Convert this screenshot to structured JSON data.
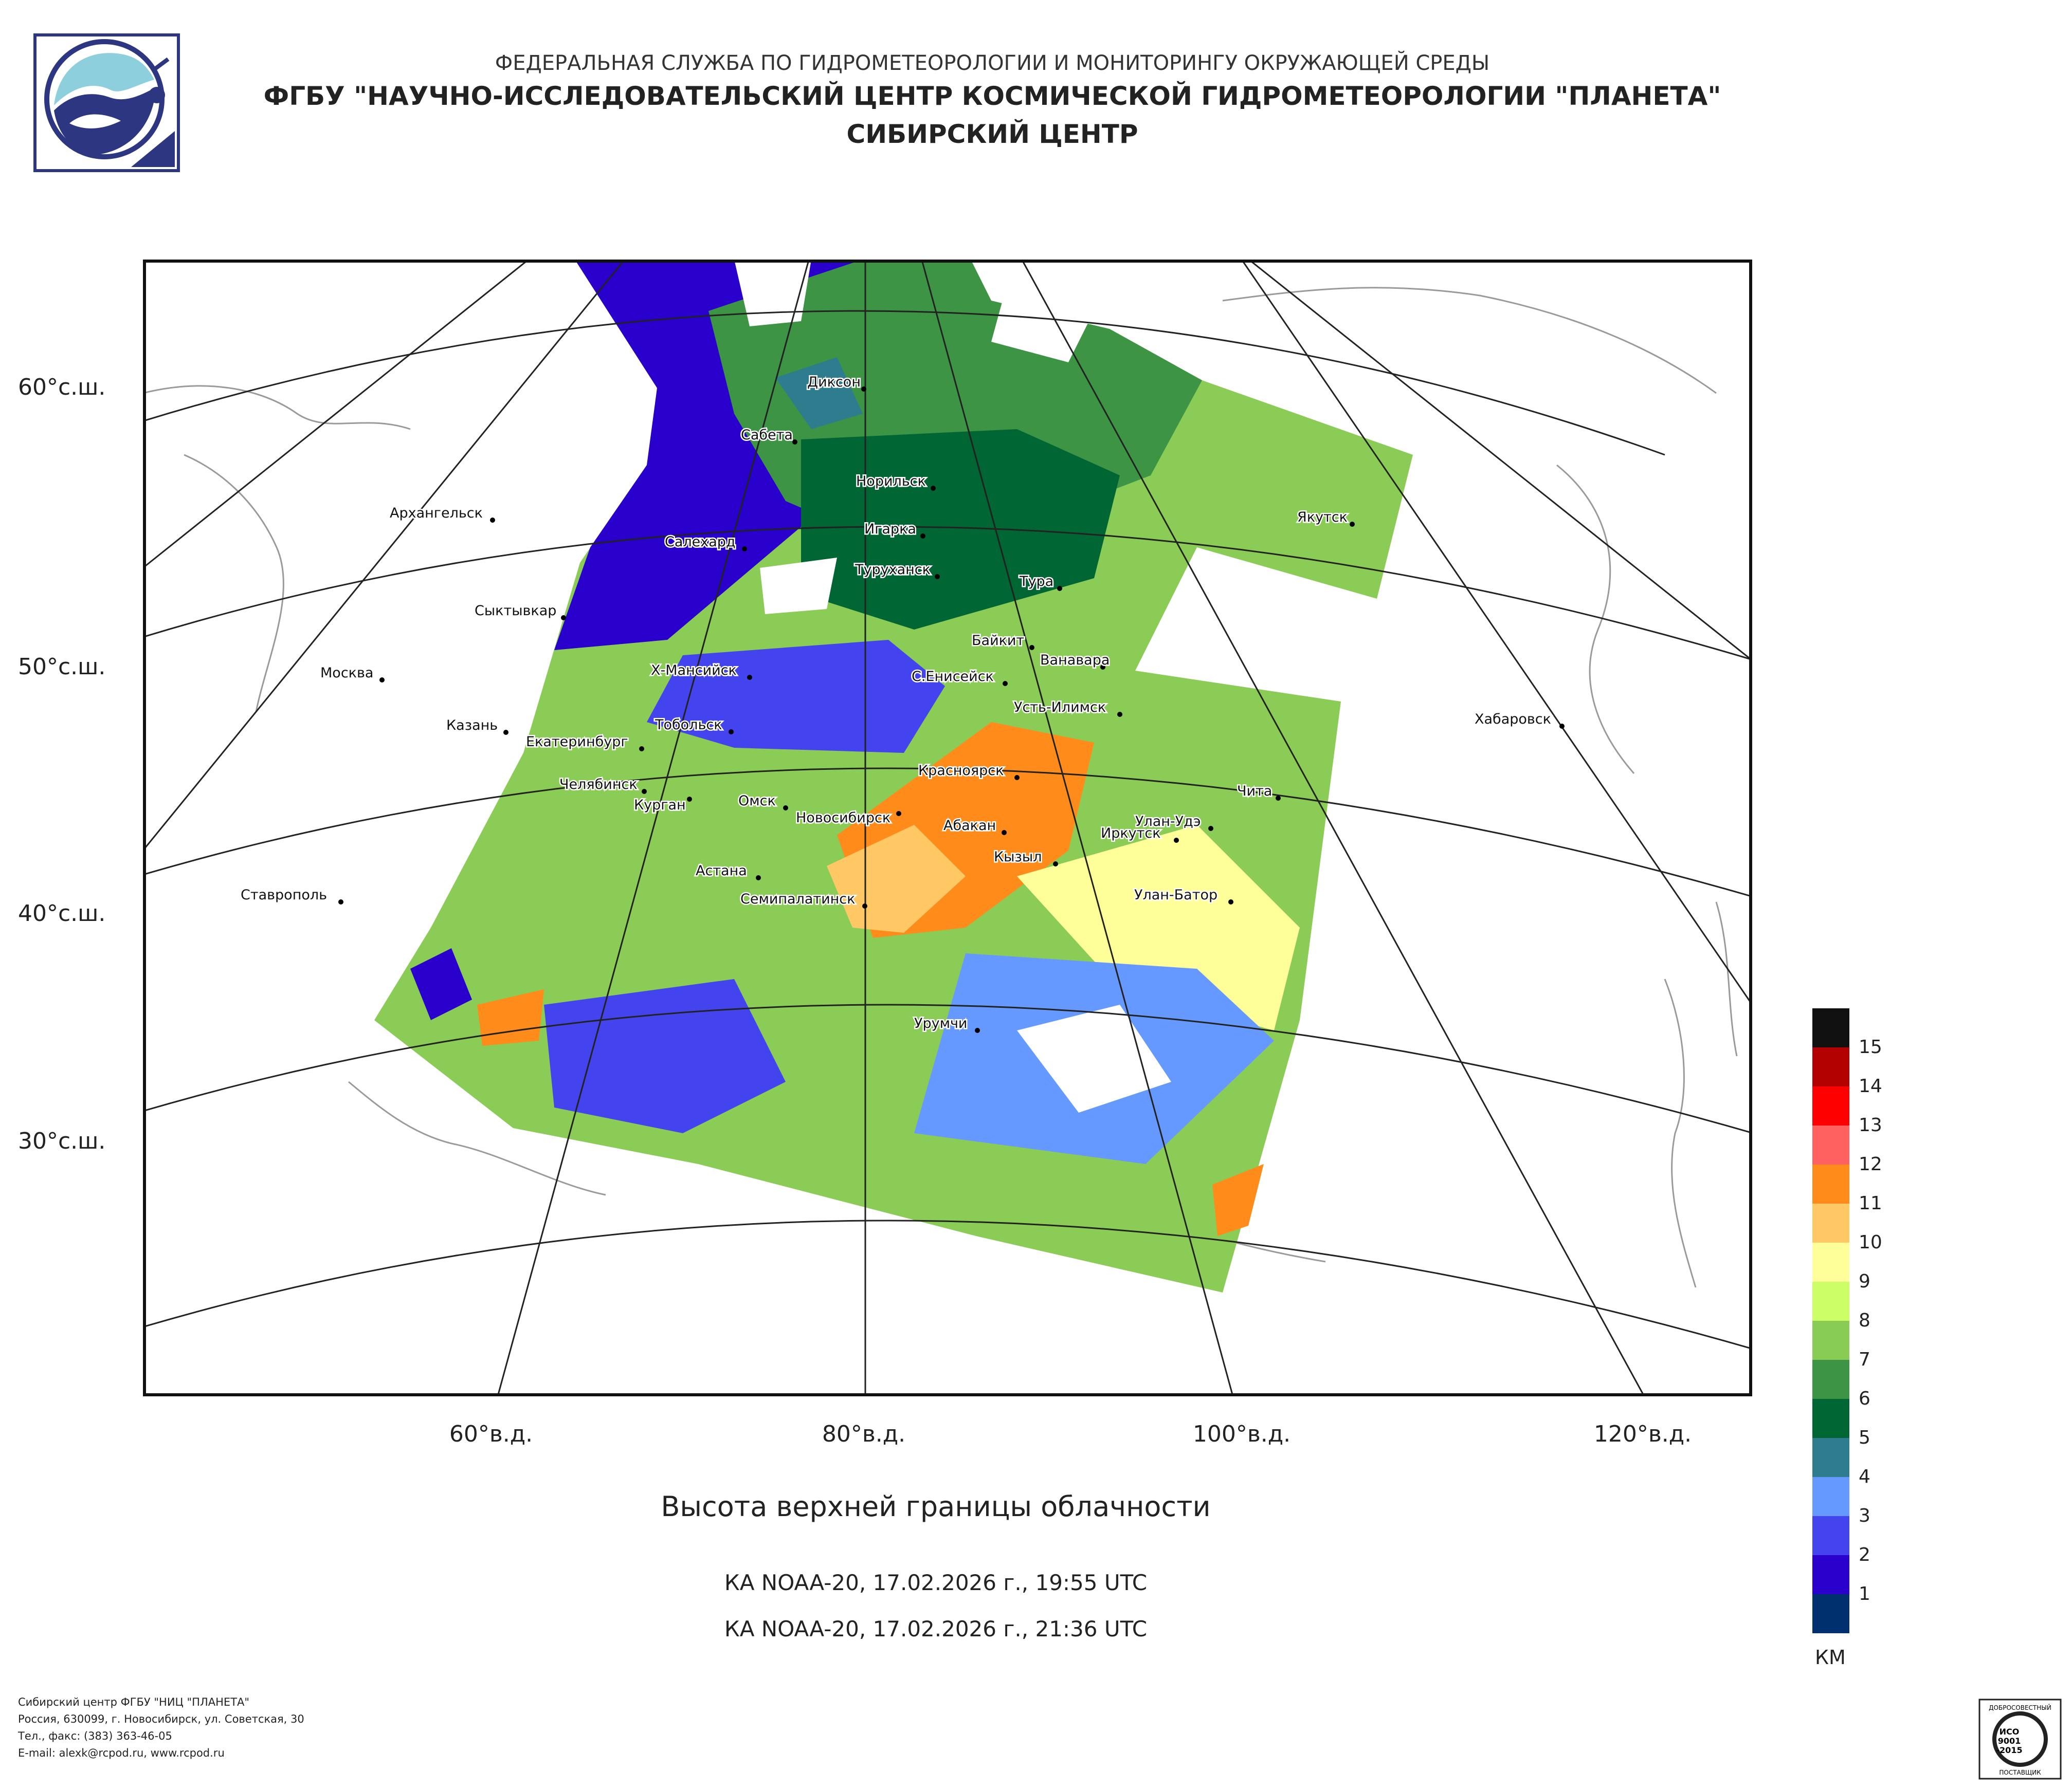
{
  "header": {
    "line1": "ФЕДЕРАЛЬНАЯ СЛУЖБА ПО ГИДРОМЕТЕОРОЛОГИИ И МОНИТОРИНГУ ОКРУЖАЮЩЕЙ СРЕДЫ",
    "line2": "ФГБУ \"НАУЧНО-ИССЛЕДОВАТЕЛЬСКИЙ ЦЕНТР КОСМИЧЕСКОЙ ГИДРОМЕТЕОРОЛОГИИ \"ПЛАНЕТА\"",
    "line3": "СИБИРСКИЙ ЦЕНТР"
  },
  "map": {
    "lat_labels": [
      "60°с.ш.",
      "50°с.ш.",
      "40°с.ш.",
      "30°с.ш."
    ],
    "lon_labels": [
      "60°в.д.",
      "80°в.д.",
      "100°в.д.",
      "120°в.д."
    ],
    "cities": [
      "Диксон",
      "Сабета",
      "Норильск",
      "Архангельск",
      "Игарка",
      "Салехард",
      "Туруханск",
      "Якутск",
      "Тура",
      "Сыктывкар",
      "Байкит",
      "Ванавара",
      "Москва",
      "Х-Мансийск",
      "С.Енисейск",
      "Усть-Илимск",
      "Казань",
      "Тобольск",
      "Хабаровск",
      "Екатеринбург",
      "Красноярск",
      "Челябинск",
      "Курган",
      "Омск",
      "Новосибирск",
      "Чита",
      "Абакан",
      "Улан-Удэ",
      "Иркутск",
      "Астана",
      "Кызыл",
      "Ставрополь",
      "Семипалатинск",
      "Улан-Батор",
      "Урумчи"
    ]
  },
  "title": "Высота верхней границы облачности",
  "passes": [
    "КА NOAA-20, 17.02.2026 г., 19:55 UTC",
    "КА NOAA-20, 17.02.2026 г., 21:36 UTC"
  ],
  "legend": {
    "unit": "КМ",
    "labels": [
      "15",
      "14",
      "13",
      "12",
      "11",
      "10",
      "9",
      "8",
      "7",
      "6",
      "5",
      "4",
      "3",
      "2",
      "1"
    ],
    "colors": [
      "#111111",
      "#b30000",
      "#ff0000",
      "#ff6060",
      "#ff8c1a",
      "#ffc864",
      "#ffff99",
      "#ccff66",
      "#88cc55",
      "#3c9444",
      "#006633",
      "#2e7d8f",
      "#6699ff",
      "#4444ee",
      "#2a00cc",
      "#00306e"
    ]
  },
  "footer": {
    "lines": [
      "Сибирский центр ФГБУ \"НИЦ \"ПЛАНЕТА\"",
      "Россия, 630099, г. Новосибирск, ул. Советская, 30",
      "Тел., факс: (383) 363-46-05",
      "E-mail: alexk@rcpod.ru, www.rcpod.ru"
    ]
  },
  "iso": {
    "top": "ДОБРОСОВЕСТНЫЙ",
    "line1": "ИСО",
    "line2": "9001",
    "line3": "-2015",
    "bottom": "ПОСТАВЩИК"
  }
}
